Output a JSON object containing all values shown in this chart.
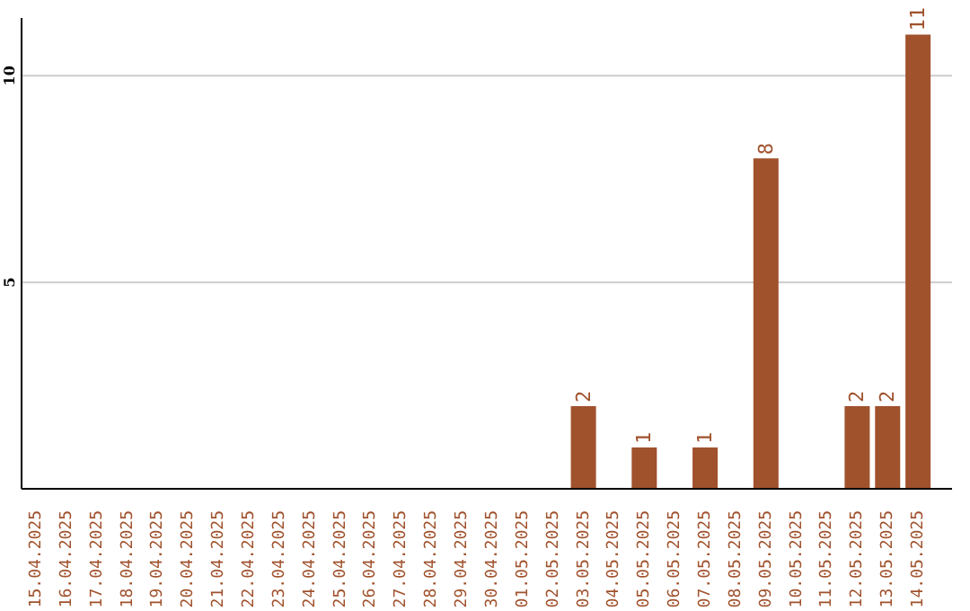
{
  "chart_data": {
    "type": "bar",
    "categories": [
      "15.04.2025",
      "16.04.2025",
      "17.04.2025",
      "18.04.2025",
      "19.04.2025",
      "20.04.2025",
      "21.04.2025",
      "22.04.2025",
      "23.04.2025",
      "24.04.2025",
      "25.04.2025",
      "26.04.2025",
      "27.04.2025",
      "28.04.2025",
      "29.04.2025",
      "30.04.2025",
      "01.05.2025",
      "02.05.2025",
      "03.05.2025",
      "04.05.2025",
      "05.05.2025",
      "06.05.2025",
      "07.05.2025",
      "08.05.2025",
      "09.05.2025",
      "10.05.2025",
      "11.05.2025",
      "12.05.2025",
      "13.05.2025",
      "14.05.2025"
    ],
    "values": [
      0,
      0,
      0,
      0,
      0,
      0,
      0,
      0,
      0,
      0,
      0,
      0,
      0,
      0,
      0,
      0,
      0,
      0,
      2,
      0,
      1,
      0,
      1,
      0,
      8,
      0,
      0,
      2,
      2,
      11
    ],
    "value_labels": [
      null,
      null,
      null,
      null,
      null,
      null,
      null,
      null,
      null,
      null,
      null,
      null,
      null,
      null,
      null,
      null,
      null,
      null,
      "2",
      null,
      "1",
      null,
      "1",
      null,
      "8",
      null,
      null,
      "2",
      "2",
      "11"
    ],
    "color": "#a0522d",
    "ylim": [
      0,
      11.4
    ],
    "yticks": [
      5,
      10
    ],
    "grid": "y"
  }
}
